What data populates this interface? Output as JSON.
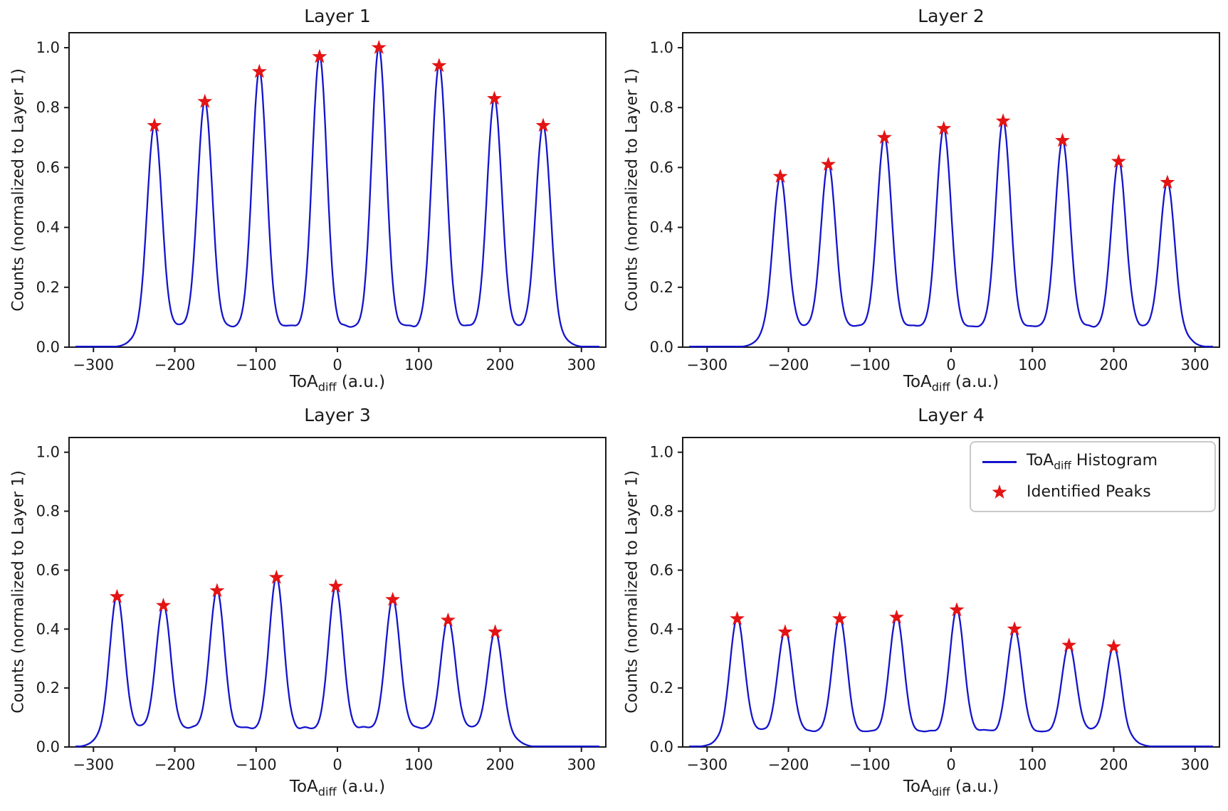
{
  "figure": {
    "ylabel": "Counts (normalized to Layer 1)",
    "xlabel_main": "ToA",
    "xlabel_sub": "diff",
    "xlabel_rest": " (a.u.)",
    "colors": {
      "histogram_line": "#1414cc",
      "peak_star": "#e41414",
      "axis": "#1a1a1a",
      "background": "#ffffff"
    }
  },
  "legend": {
    "line_label_main": "ToA",
    "line_label_sub": "diff",
    "line_label_rest": " Histogram",
    "peaks_label": "Identified Peaks",
    "location": "upper right of Layer 4 subplot"
  },
  "chart_data": [
    {
      "type": "line",
      "title": "Layer 1",
      "xlabel": "ToA_diff (a.u.)",
      "ylabel": "Counts (normalized to Layer 1)",
      "xlim": [
        -330,
        330
      ],
      "ylim": [
        0,
        1.05
      ],
      "x_ticks": [
        -300,
        -200,
        -100,
        0,
        100,
        200,
        300
      ],
      "x_tick_labels": [
        "−300",
        "−200",
        "−100",
        "0",
        "100",
        "200",
        "300"
      ],
      "y_ticks": [
        0.0,
        0.2,
        0.4,
        0.6,
        0.8,
        1.0
      ],
      "y_tick_labels": [
        "0.0",
        "0.2",
        "0.4",
        "0.6",
        "0.8",
        "1.0"
      ],
      "grid": false,
      "baseline_level": 0.05,
      "peak_sigma": 9,
      "series": [
        {
          "name": "ToA_diff Histogram",
          "style": "line",
          "color": "#1414cc"
        },
        {
          "name": "Identified Peaks",
          "style": "star-markers",
          "color": "#e41414",
          "x": [
            -225,
            -163,
            -96,
            -22,
            51,
            125,
            193,
            253
          ],
          "y": [
            0.74,
            0.82,
            0.92,
            0.97,
            1.0,
            0.94,
            0.83,
            0.74
          ]
        }
      ]
    },
    {
      "type": "line",
      "title": "Layer 2",
      "xlabel": "ToA_diff (a.u.)",
      "ylabel": "Counts (normalized to Layer 1)",
      "xlim": [
        -330,
        330
      ],
      "ylim": [
        0,
        1.05
      ],
      "x_ticks": [
        -300,
        -200,
        -100,
        0,
        100,
        200,
        300
      ],
      "x_tick_labels": [
        "−300",
        "−200",
        "−100",
        "0",
        "100",
        "200",
        "300"
      ],
      "y_ticks": [
        0.0,
        0.2,
        0.4,
        0.6,
        0.8,
        1.0
      ],
      "y_tick_labels": [
        "0.0",
        "0.2",
        "0.4",
        "0.6",
        "0.8",
        "1.0"
      ],
      "grid": false,
      "baseline_level": 0.05,
      "peak_sigma": 9,
      "series": [
        {
          "name": "ToA_diff Histogram",
          "style": "line",
          "color": "#1414cc"
        },
        {
          "name": "Identified Peaks",
          "style": "star-markers",
          "color": "#e41414",
          "x": [
            -210,
            -151,
            -82,
            -9,
            64,
            137,
            206,
            266
          ],
          "y": [
            0.57,
            0.61,
            0.7,
            0.73,
            0.755,
            0.69,
            0.62,
            0.55
          ]
        }
      ]
    },
    {
      "type": "line",
      "title": "Layer 3",
      "xlabel": "ToA_diff (a.u.)",
      "ylabel": "Counts (normalized to Layer 1)",
      "xlim": [
        -330,
        330
      ],
      "ylim": [
        0,
        1.05
      ],
      "x_ticks": [
        -300,
        -200,
        -100,
        0,
        100,
        200,
        300
      ],
      "x_tick_labels": [
        "−300",
        "−200",
        "−100",
        "0",
        "100",
        "200",
        "300"
      ],
      "y_ticks": [
        0.0,
        0.2,
        0.4,
        0.6,
        0.8,
        1.0
      ],
      "y_tick_labels": [
        "0.0",
        "0.2",
        "0.4",
        "0.6",
        "0.8",
        "1.0"
      ],
      "grid": false,
      "baseline_level": 0.045,
      "peak_sigma": 9,
      "series": [
        {
          "name": "ToA_diff Histogram",
          "style": "line",
          "color": "#1414cc"
        },
        {
          "name": "Identified Peaks",
          "style": "star-markers",
          "color": "#e41414",
          "x": [
            -271,
            -214,
            -148,
            -75,
            -2,
            68,
            136,
            194
          ],
          "y": [
            0.51,
            0.48,
            0.53,
            0.575,
            0.545,
            0.5,
            0.43,
            0.39
          ]
        }
      ]
    },
    {
      "type": "line",
      "title": "Layer 4",
      "xlabel": "ToA_diff (a.u.)",
      "ylabel": "Counts (normalized to Layer 1)",
      "xlim": [
        -330,
        330
      ],
      "ylim": [
        0,
        1.05
      ],
      "x_ticks": [
        -300,
        -200,
        -100,
        0,
        100,
        200,
        300
      ],
      "x_tick_labels": [
        "−300",
        "−200",
        "−100",
        "0",
        "100",
        "200",
        "300"
      ],
      "y_ticks": [
        0.0,
        0.2,
        0.4,
        0.6,
        0.8,
        1.0
      ],
      "y_tick_labels": [
        "0.0",
        "0.2",
        "0.4",
        "0.6",
        "0.8",
        "1.0"
      ],
      "grid": false,
      "baseline_level": 0.035,
      "peak_sigma": 9,
      "series": [
        {
          "name": "ToA_diff Histogram",
          "style": "line",
          "color": "#1414cc"
        },
        {
          "name": "Identified Peaks",
          "style": "star-markers",
          "color": "#e41414",
          "x": [
            -263,
            -204,
            -137,
            -67,
            7,
            78,
            145,
            200
          ],
          "y": [
            0.435,
            0.39,
            0.435,
            0.44,
            0.465,
            0.4,
            0.345,
            0.34
          ]
        }
      ]
    }
  ]
}
